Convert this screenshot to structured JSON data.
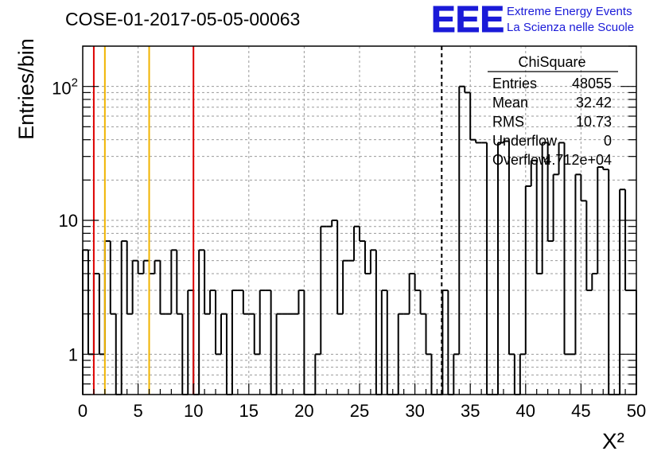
{
  "header": {
    "run_title": "COSE-01-2017-05-05-00063",
    "logo_text": "EEE",
    "logo_line1": "Extreme Energy Events",
    "logo_line2": "La Scienza nelle Scuole"
  },
  "stats_box": {
    "title": "ChiSquare",
    "rows": [
      {
        "label": "Entries",
        "value": "48055"
      },
      {
        "label": "Mean",
        "value": "32.42"
      },
      {
        "label": "RMS",
        "value": "10.73"
      },
      {
        "label": "Underflow",
        "value": "0"
      },
      {
        "label": "Overflow",
        "value": "4.712e+04"
      }
    ]
  },
  "colors": {
    "red_line": "#dd0000",
    "yellow_line": "#f0b400",
    "logo_blue": "#1a1ad8",
    "grid": "#9a9a9a"
  },
  "chart_data": {
    "type": "histogram",
    "title": "COSE-01-2017-05-05-00063",
    "xlabel": "X²",
    "ylabel": "Entries/bin",
    "yscale": "log",
    "xlim": [
      0,
      50
    ],
    "ylim": [
      0.5,
      200
    ],
    "grid": true,
    "bin_width": 0.5,
    "x_ticks": [
      0,
      5,
      10,
      15,
      20,
      25,
      30,
      35,
      40,
      45,
      50
    ],
    "y_ticks": [
      {
        "value": 1,
        "label": "1"
      },
      {
        "value": 10,
        "label": "10"
      },
      {
        "value": 100,
        "label": "10²"
      }
    ],
    "bin_values": [
      6,
      1,
      4,
      1,
      7,
      2,
      0,
      7,
      2,
      5,
      4,
      5,
      4,
      5,
      2,
      2,
      6,
      2,
      0,
      3,
      0,
      6,
      2,
      3,
      1,
      2,
      0,
      3,
      3,
      2,
      2,
      1,
      3,
      3,
      0,
      2,
      2,
      2,
      2,
      3,
      0,
      0,
      1,
      9,
      9,
      10,
      2,
      5,
      5,
      9,
      7,
      4,
      6,
      0,
      3,
      0,
      0,
      2,
      2,
      4,
      3,
      2,
      1,
      0,
      0,
      3,
      0,
      1,
      100,
      90,
      40,
      38,
      38,
      0,
      0,
      38,
      39,
      1,
      0,
      1,
      18,
      28,
      4,
      38,
      7,
      22,
      38,
      1,
      1,
      22,
      14,
      3,
      4,
      25,
      24,
      0,
      0,
      17,
      3,
      3
    ],
    "vertical_lines": [
      {
        "x": 1,
        "color": "red",
        "style": "solid"
      },
      {
        "x": 2,
        "color": "yellow",
        "style": "solid"
      },
      {
        "x": 6,
        "color": "yellow",
        "style": "solid"
      },
      {
        "x": 10,
        "color": "red",
        "style": "solid"
      },
      {
        "x": 32.42,
        "color": "black",
        "style": "dashed"
      }
    ]
  }
}
